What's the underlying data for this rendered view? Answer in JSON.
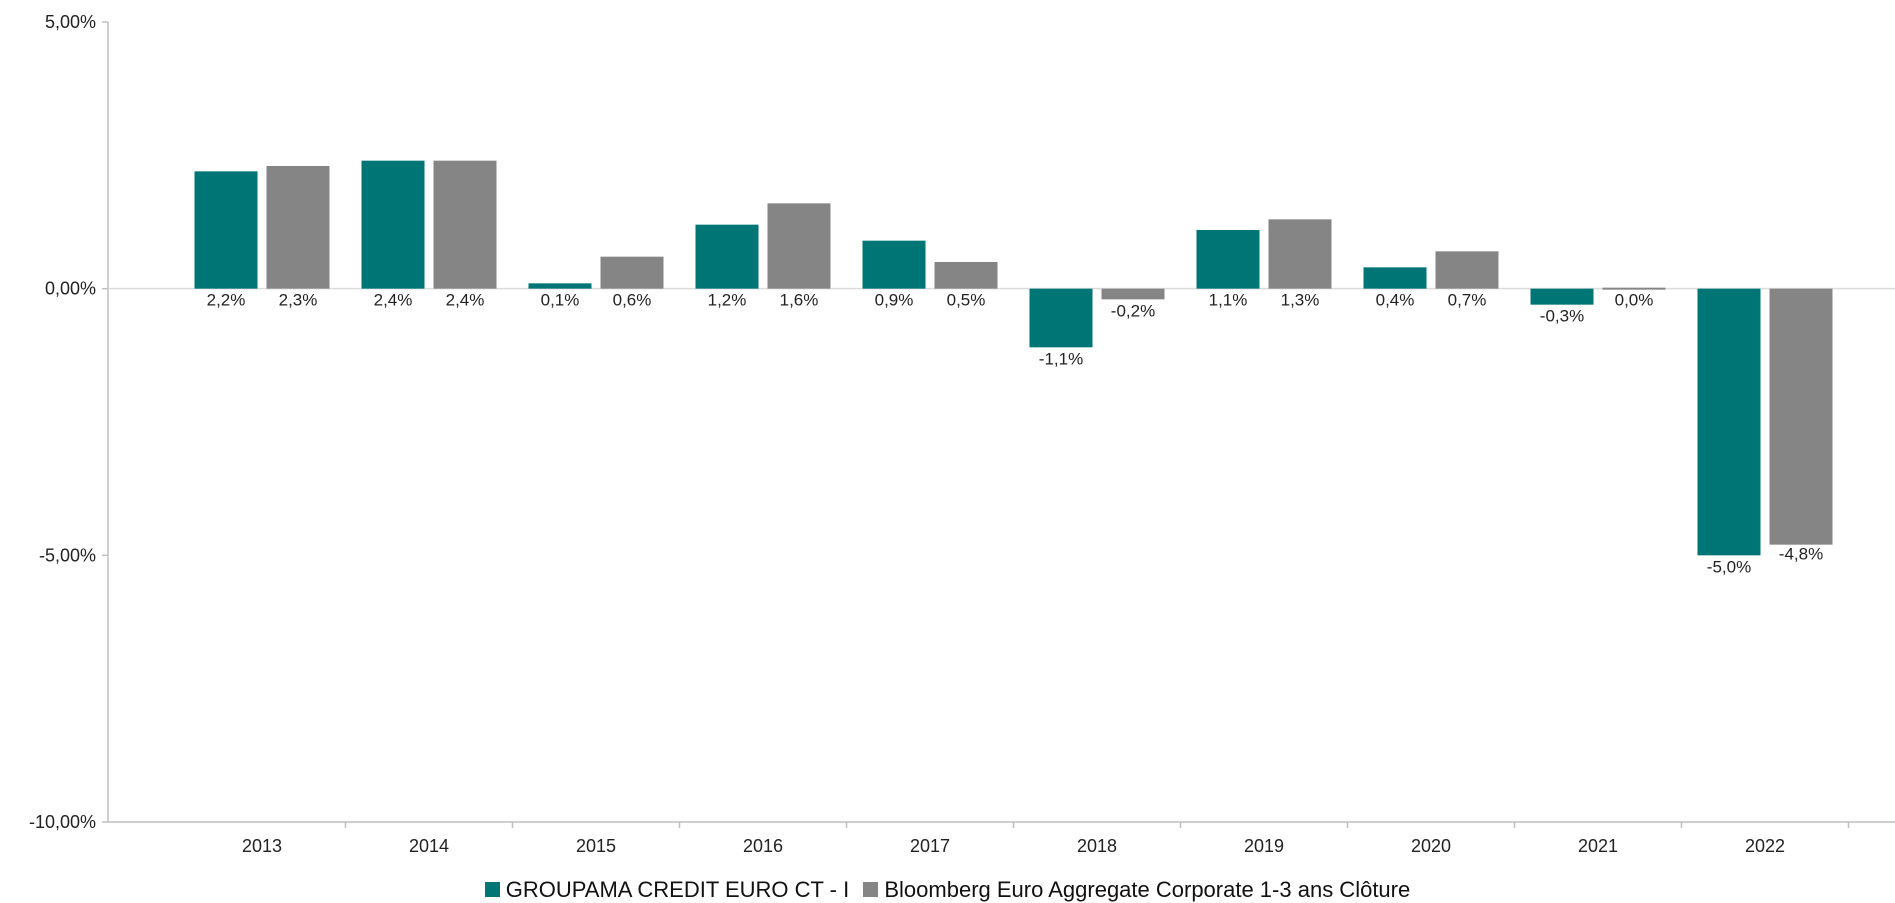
{
  "chart_data": {
    "type": "bar",
    "categories": [
      "2013",
      "2014",
      "2015",
      "2016",
      "2017",
      "2018",
      "2019",
      "2020",
      "2021",
      "2022"
    ],
    "series": [
      {
        "name": "GROUPAMA CREDIT EURO CT - I",
        "color": "#007575",
        "values": [
          2.2,
          2.4,
          0.1,
          1.2,
          0.9,
          -1.1,
          1.1,
          0.4,
          -0.3,
          -5.0
        ],
        "labels": [
          "2,2%",
          "2,4%",
          "0,1%",
          "1,2%",
          "0,9%",
          "-1,1%",
          "1,1%",
          "0,4%",
          "-0,3%",
          "-5,0%"
        ]
      },
      {
        "name": "Bloomberg Euro Aggregate Corporate 1-3 ans  Clôture",
        "color": "#858585",
        "values": [
          2.3,
          2.4,
          0.6,
          1.6,
          0.5,
          -0.2,
          1.3,
          0.7,
          0.0,
          -4.8
        ],
        "labels": [
          "2,3%",
          "2,4%",
          "0,6%",
          "1,6%",
          "0,5%",
          "-0,2%",
          "1,3%",
          "0,7%",
          "0,0%",
          "-4,8%"
        ]
      }
    ],
    "ylim": [
      -10,
      5
    ],
    "yticks": [
      5,
      0,
      -5,
      -10
    ],
    "ytick_labels": [
      "5,00%",
      "0,00%",
      "-5,00%",
      "-10,00%"
    ],
    "title": "",
    "xlabel": "",
    "ylabel": "",
    "grid": false,
    "legend_position": "bottom"
  }
}
